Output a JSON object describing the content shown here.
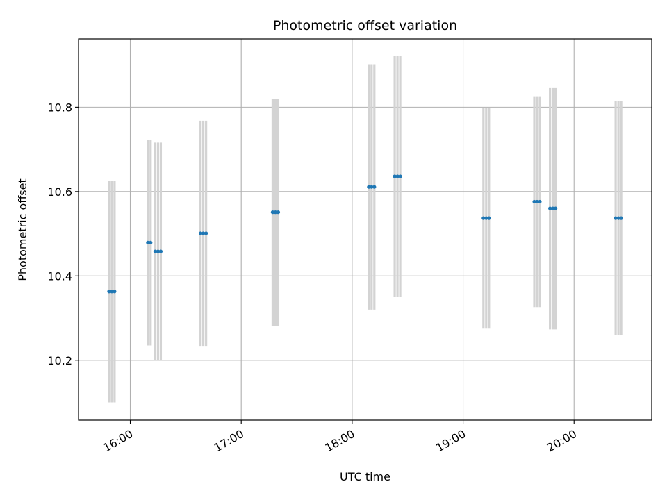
{
  "chart_data": {
    "type": "scatter",
    "title": "Photometric offset variation",
    "xlabel": "UTC time",
    "ylabel": "Photometric offset",
    "xlim": [
      "15:32",
      "20:42"
    ],
    "ylim": [
      10.058,
      10.962
    ],
    "grid": true,
    "x_ticks": [
      "16:00",
      "17:00",
      "18:00",
      "19:00",
      "20:00"
    ],
    "y_ticks": [
      10.2,
      10.4,
      10.6,
      10.8
    ],
    "y_tick_labels": [
      "10.2",
      "10.4",
      "10.6",
      "10.8"
    ],
    "colors": {
      "points": "#1f77b4",
      "errorbars": "#d3d3d3",
      "grid": "#b0b0b0"
    },
    "series": [
      {
        "points": [
          {
            "x": "15:48:30",
            "y": 10.363,
            "yerr": 0.263
          },
          {
            "x": "15:50:00",
            "y": 10.363,
            "yerr": 0.263
          },
          {
            "x": "15:51:30",
            "y": 10.363,
            "yerr": 0.263
          },
          {
            "x": "16:09:30",
            "y": 10.479,
            "yerr": 0.244
          },
          {
            "x": "16:11:00",
            "y": 10.479,
            "yerr": 0.244
          },
          {
            "x": "16:13:30",
            "y": 10.458,
            "yerr": 0.258
          },
          {
            "x": "16:15:00",
            "y": 10.458,
            "yerr": 0.258
          },
          {
            "x": "16:16:30",
            "y": 10.458,
            "yerr": 0.258
          },
          {
            "x": "16:38:00",
            "y": 10.501,
            "yerr": 0.267
          },
          {
            "x": "16:39:30",
            "y": 10.501,
            "yerr": 0.267
          },
          {
            "x": "16:41:00",
            "y": 10.501,
            "yerr": 0.267
          },
          {
            "x": "17:17:00",
            "y": 10.551,
            "yerr": 0.269
          },
          {
            "x": "17:18:30",
            "y": 10.551,
            "yerr": 0.269
          },
          {
            "x": "17:20:00",
            "y": 10.551,
            "yerr": 0.269
          },
          {
            "x": "18:09:00",
            "y": 10.611,
            "yerr": 0.291
          },
          {
            "x": "18:10:30",
            "y": 10.611,
            "yerr": 0.291
          },
          {
            "x": "18:12:00",
            "y": 10.611,
            "yerr": 0.291
          },
          {
            "x": "18:23:00",
            "y": 10.636,
            "yerr": 0.285
          },
          {
            "x": "18:24:30",
            "y": 10.636,
            "yerr": 0.285
          },
          {
            "x": "18:26:00",
            "y": 10.636,
            "yerr": 0.285
          },
          {
            "x": "19:11:00",
            "y": 10.537,
            "yerr": 0.262
          },
          {
            "x": "19:12:30",
            "y": 10.537,
            "yerr": 0.262
          },
          {
            "x": "19:14:00",
            "y": 10.537,
            "yerr": 0.262
          },
          {
            "x": "19:38:30",
            "y": 10.576,
            "yerr": 0.25
          },
          {
            "x": "19:40:00",
            "y": 10.576,
            "yerr": 0.25
          },
          {
            "x": "19:41:30",
            "y": 10.576,
            "yerr": 0.25
          },
          {
            "x": "19:47:00",
            "y": 10.56,
            "yerr": 0.287
          },
          {
            "x": "19:48:30",
            "y": 10.56,
            "yerr": 0.287
          },
          {
            "x": "19:50:00",
            "y": 10.56,
            "yerr": 0.287
          },
          {
            "x": "20:22:30",
            "y": 10.537,
            "yerr": 0.278
          },
          {
            "x": "20:24:00",
            "y": 10.537,
            "yerr": 0.278
          },
          {
            "x": "20:25:30",
            "y": 10.537,
            "yerr": 0.278
          }
        ]
      }
    ]
  }
}
